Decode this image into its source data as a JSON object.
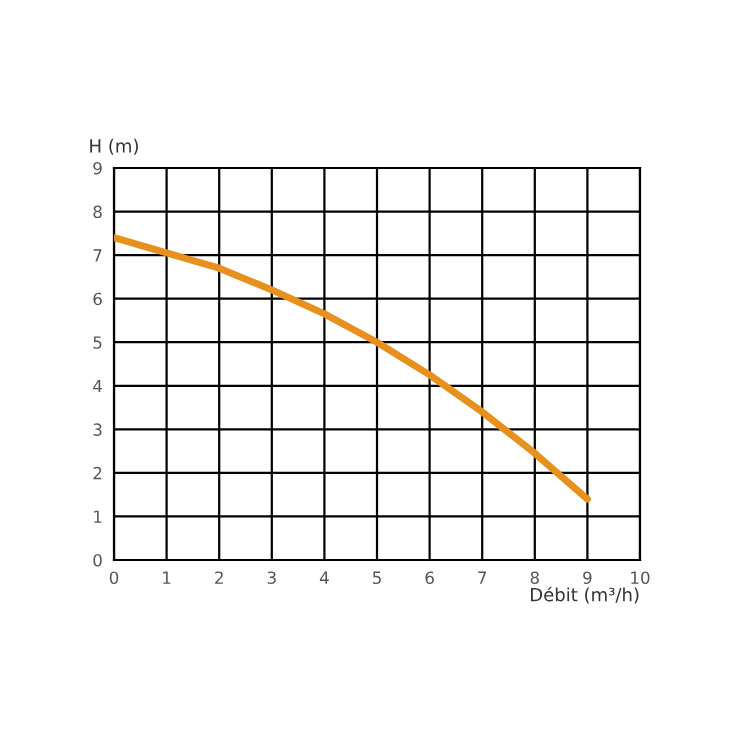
{
  "chart_data": {
    "type": "line",
    "xlabel": "Débit (m³/h)",
    "ylabel": "H (m)",
    "x": [
      0,
      1,
      2,
      3,
      4,
      5,
      6,
      7,
      8,
      9
    ],
    "series": [
      {
        "color": "#e8901e",
        "values": [
          7.4,
          7.05,
          6.7,
          6.2,
          5.65,
          5.0,
          4.25,
          3.4,
          2.45,
          1.4
        ]
      }
    ],
    "xlim": [
      0,
      10
    ],
    "ylim": [
      0,
      9
    ],
    "xticks": [
      0,
      1,
      2,
      3,
      4,
      5,
      6,
      7,
      8,
      9,
      10
    ],
    "yticks": [
      0,
      1,
      2,
      3,
      4,
      5,
      6,
      7,
      8,
      9
    ],
    "grid": true,
    "marker": "none",
    "line_style": "solid"
  }
}
